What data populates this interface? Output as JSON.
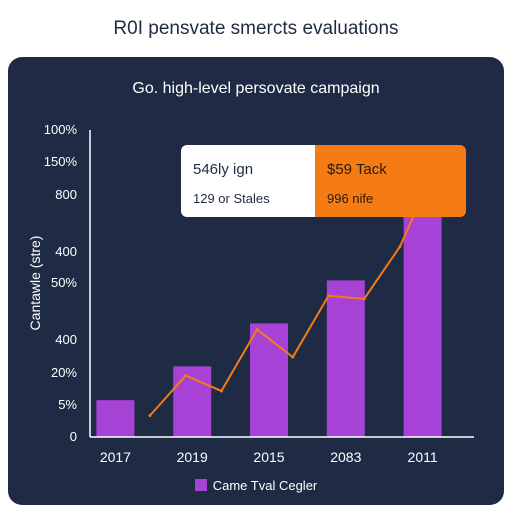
{
  "page": {
    "title": "R0I pensvate smercts evaluations"
  },
  "chart_data": {
    "type": "bar",
    "subtitle": "Go. high-level persovate campaign",
    "ylabel": "Cantawle (stre)",
    "y_tick_labels": [
      "100%",
      "150%",
      "800",
      "400",
      "50%",
      "400",
      "20%",
      "5%",
      "0"
    ],
    "categories": [
      "2017",
      "2019",
      "2015",
      "2083",
      "2011"
    ],
    "values": [
      12,
      23,
      37,
      51,
      76
    ],
    "ylim": [
      0,
      100
    ],
    "line_series": {
      "values": [
        7,
        20,
        15,
        35,
        26,
        46,
        45,
        62,
        88
      ]
    },
    "legend": {
      "label": "Came Tval Cegler",
      "position": "bottom"
    },
    "callout": {
      "left_title": "546ly ign",
      "left_sub": "129 or Stales",
      "right_title": "$59 Tack",
      "right_sub": "996 nife"
    },
    "colors": {
      "bar": "#a642d6",
      "line": "#f57c14",
      "background": "#1f2a44",
      "axis": "#ffffff"
    },
    "grid": false
  }
}
